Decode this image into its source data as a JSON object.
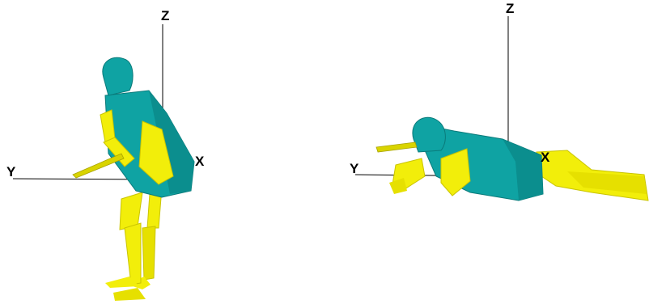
{
  "figures": [
    {
      "id": "standing-pose",
      "axes": {
        "z": "Z",
        "x": "X",
        "y": "Y"
      }
    },
    {
      "id": "prone-pose",
      "axes": {
        "z": "Z",
        "x": "X",
        "y": "Y"
      }
    }
  ],
  "colors": {
    "torso": "#0fa3a3",
    "torso_shade": "#0a7a7a",
    "limbs": "#f2ee0a",
    "limbs_shade": "#c9c400",
    "axis_line": "#000000"
  }
}
